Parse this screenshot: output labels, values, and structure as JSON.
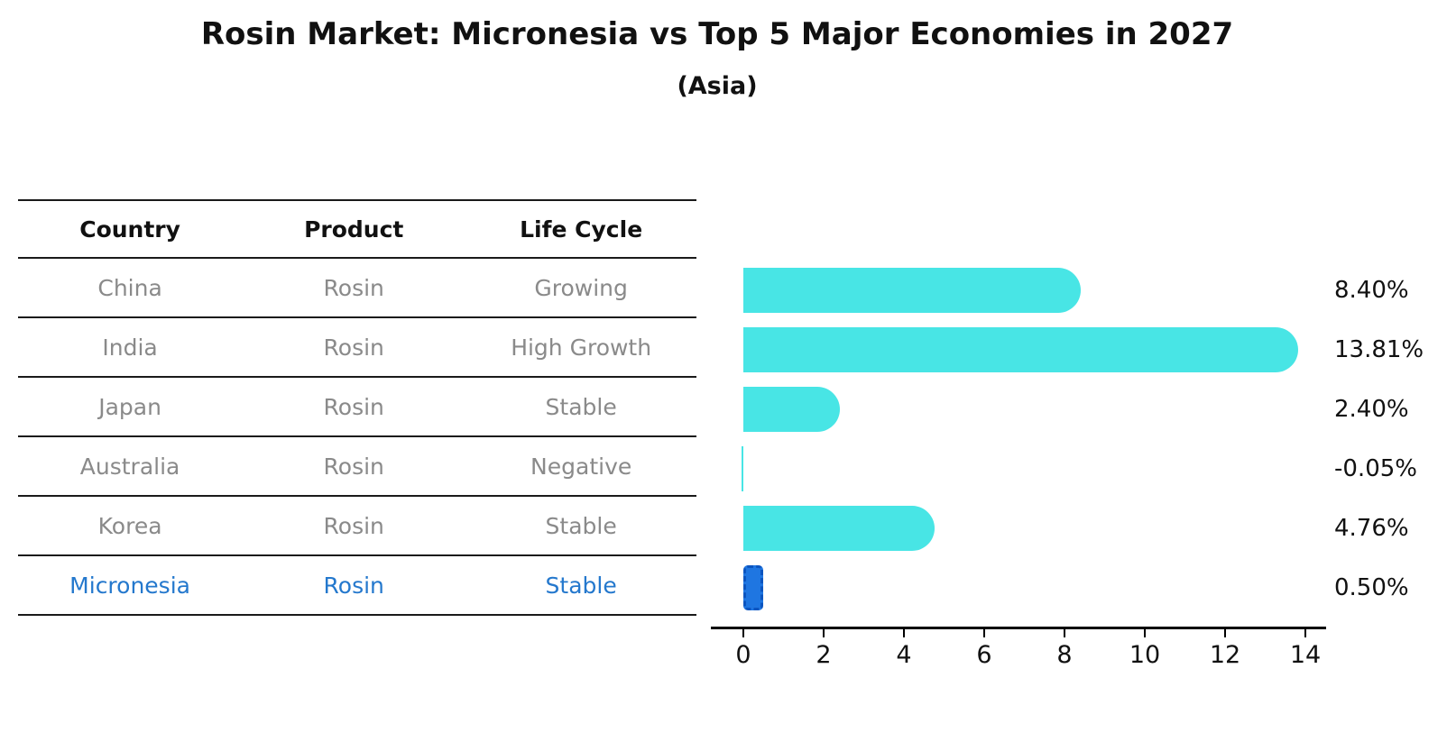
{
  "title": "Rosin Market: Micronesia vs Top 5 Major Economies in 2027",
  "subtitle": "(Asia)",
  "table": {
    "headers": [
      "Country",
      "Product",
      "Life Cycle"
    ],
    "rows": [
      {
        "country": "China",
        "product": "Rosin",
        "life_cycle": "Growing",
        "highlight": false
      },
      {
        "country": "India",
        "product": "Rosin",
        "life_cycle": "High Growth",
        "highlight": false
      },
      {
        "country": "Japan",
        "product": "Rosin",
        "life_cycle": "Stable",
        "highlight": false
      },
      {
        "country": "Australia",
        "product": "Rosin",
        "life_cycle": "Negative",
        "highlight": false
      },
      {
        "country": "Korea",
        "product": "Rosin",
        "life_cycle": "Stable",
        "highlight": false
      },
      {
        "country": "Micronesia",
        "product": "Rosin",
        "life_cycle": "Stable",
        "highlight": true
      }
    ]
  },
  "chart_data": {
    "type": "bar",
    "orientation": "horizontal",
    "title": "Rosin Market: Micronesia vs Top 5 Major Economies in 2027",
    "subtitle": "(Asia)",
    "categories": [
      "China",
      "India",
      "Japan",
      "Australia",
      "Korea",
      "Micronesia"
    ],
    "values": [
      8.4,
      13.81,
      2.4,
      -0.05,
      4.76,
      0.5
    ],
    "value_labels": [
      "8.40%",
      "13.81%",
      "2.40%",
      "-0.05%",
      "4.76%",
      "0.50%"
    ],
    "highlight_index": 5,
    "x_ticks": [
      0,
      2,
      4,
      6,
      8,
      10,
      12,
      14
    ],
    "x_tick_labels": [
      "0",
      "2",
      "4",
      "6",
      "8",
      "10",
      "12",
      "14"
    ],
    "xlim": [
      -0.8,
      14.5
    ],
    "ylabel": "",
    "xlabel": "",
    "grid": false,
    "legend": "none",
    "colors": {
      "bar": "#48e5e5",
      "highlight_bar": "#1f76e1",
      "highlight_bar_border": "#0c55c0",
      "highlight_text": "#2478cd",
      "table_text": "#8a8a8a",
      "header_text": "#111111",
      "value_label_text": "#111111",
      "axis": "#000000"
    }
  }
}
